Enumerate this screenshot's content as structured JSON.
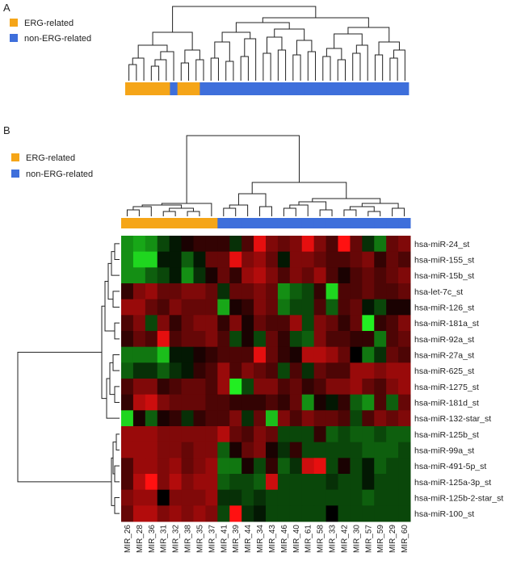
{
  "figure": {
    "panel_a_label": "A",
    "panel_b_label": "B"
  },
  "legend": {
    "erg_label": "ERG-related",
    "non_erg_label": "non-ERG-related"
  },
  "colors": {
    "erg": "#F5A518",
    "non_erg": "#3E6FDB",
    "dendrogram": "#222222",
    "heat_low": "#22EE22",
    "heat_mid": "#000000",
    "heat_high": "#FF1111"
  },
  "chart_data": [
    {
      "type": "dendrogram",
      "title": "A",
      "leaf_groups": [
        "ERG",
        "ERG",
        "ERG",
        "ERG",
        "ERG",
        "ERG",
        "non-ERG",
        "ERG",
        "ERG",
        "ERG",
        "non-ERG",
        "non-ERG",
        "non-ERG",
        "non-ERG",
        "non-ERG",
        "non-ERG",
        "non-ERG",
        "non-ERG",
        "non-ERG",
        "non-ERG",
        "non-ERG",
        "non-ERG",
        "non-ERG",
        "non-ERG",
        "non-ERG",
        "non-ERG",
        "non-ERG",
        "non-ERG",
        "non-ERG",
        "non-ERG",
        "non-ERG",
        "non-ERG",
        "non-ERG",
        "non-ERG",
        "non-ERG",
        "non-ERG",
        "non-ERG",
        "non-ERG"
      ],
      "legend": [
        "ERG-related",
        "non-ERG-related"
      ]
    },
    {
      "type": "heatmap",
      "title": "B",
      "columns": [
        "MIR_26",
        "MIR_28",
        "MIR_36",
        "MIR_31",
        "MIR_32",
        "MIR_38",
        "MIR_35",
        "MIR_37",
        "MIR_41",
        "MIR_39",
        "MIR_44",
        "MIR_34",
        "MIR_43",
        "MIR_46",
        "MIR_40",
        "MIR_61",
        "MIR_58",
        "MIR_33",
        "MIR_42",
        "MIR_30",
        "MIR_57",
        "MIR_59",
        "MIR_29",
        "MIR_60"
      ],
      "column_groups": [
        "ERG",
        "ERG",
        "ERG",
        "ERG",
        "ERG",
        "ERG",
        "ERG",
        "ERG",
        "non-ERG",
        "non-ERG",
        "non-ERG",
        "non-ERG",
        "non-ERG",
        "non-ERG",
        "non-ERG",
        "non-ERG",
        "non-ERG",
        "non-ERG",
        "non-ERG",
        "non-ERG",
        "non-ERG",
        "non-ERG",
        "non-ERG",
        "non-ERG"
      ],
      "rows": [
        "hsa-miR-24_st",
        "hsa-miR-155_st",
        "hsa-miR-15b_st",
        "hsa-let-7c_st",
        "hsa-miR-126_st",
        "hsa-miR-181a_st",
        "hsa-miR-92a_st",
        "hsa-miR-27a_st",
        "hsa-miR-625_st",
        "hsa-miR-1275_st",
        "hsa-miR-181d_st",
        "hsa-miR-132-star_st",
        "hsa-miR-125b_st",
        "hsa-miR-99a_st",
        "hsa-miR-491-5p_st",
        "hsa-miR-125a-3p_st",
        "hsa-miR-125b-2-star_st",
        "hsa-miR-100_st"
      ],
      "value_range": [
        -1,
        1
      ],
      "values": [
        [
          -0.6,
          -0.7,
          -0.6,
          -0.3,
          -0.1,
          0.1,
          0.2,
          0.2,
          0.2,
          -0.2,
          0.3,
          0.9,
          0.5,
          0.4,
          0.5,
          0.9,
          0.5,
          0.3,
          1.0,
          0.4,
          -0.2,
          -0.5,
          0.4,
          0.5
        ],
        [
          -0.6,
          -0.9,
          -0.9,
          -0.1,
          -0.1,
          -0.4,
          -0.1,
          0.4,
          0.4,
          0.9,
          0.5,
          0.6,
          0.4,
          -0.1,
          0.5,
          0.5,
          0.4,
          0.3,
          0.3,
          0.4,
          0.5,
          0.2,
          0.4,
          0.3
        ],
        [
          -0.6,
          -0.6,
          -0.4,
          -0.3,
          -0.1,
          -0.6,
          -0.2,
          0.1,
          0.4,
          0.2,
          0.6,
          0.7,
          0.5,
          0.3,
          0.5,
          0.4,
          0.6,
          0.3,
          0.1,
          0.3,
          0.4,
          0.3,
          0.4,
          0.5
        ],
        [
          0.2,
          0.5,
          0.6,
          0.4,
          0.4,
          0.5,
          0.5,
          0.4,
          -0.2,
          0.4,
          0.4,
          0.5,
          0.4,
          -0.6,
          -0.4,
          -0.3,
          0.2,
          -0.9,
          0.3,
          0.3,
          0.4,
          0.3,
          0.3,
          0.4
        ],
        [
          0.6,
          0.6,
          0.4,
          0.3,
          0.5,
          0.4,
          0.4,
          0.4,
          -0.7,
          0.1,
          0.2,
          0.5,
          0.4,
          -0.5,
          -0.3,
          -0.3,
          0.3,
          -0.4,
          0.3,
          0.4,
          -0.1,
          -0.3,
          0.1,
          0.1
        ],
        [
          0.3,
          0.5,
          -0.3,
          0.5,
          0.2,
          0.4,
          0.5,
          0.5,
          0.2,
          0.5,
          0.1,
          0.4,
          0.3,
          0.3,
          0.6,
          -0.3,
          0.5,
          0.4,
          0.2,
          0.4,
          -1.0,
          0.2,
          0.3,
          0.5
        ],
        [
          0.2,
          0.4,
          0.3,
          0.9,
          0.3,
          0.4,
          0.4,
          0.5,
          0.3,
          -0.3,
          0.1,
          -0.3,
          0.4,
          0.2,
          -0.3,
          -0.4,
          0.5,
          0.3,
          0.3,
          0.2,
          0.2,
          -0.5,
          0.3,
          0.4
        ],
        [
          -0.5,
          -0.5,
          -0.5,
          -0.8,
          -0.1,
          -0.1,
          0.1,
          0.2,
          0.3,
          0.3,
          0.3,
          0.9,
          0.4,
          0.2,
          0.1,
          0.7,
          0.7,
          0.6,
          0.4,
          0.0,
          -0.5,
          -0.2,
          0.4,
          0.3
        ],
        [
          -0.4,
          -0.2,
          -0.2,
          -0.4,
          -0.2,
          -0.1,
          0.2,
          0.3,
          0.6,
          0.3,
          0.5,
          0.4,
          0.3,
          -0.3,
          0.3,
          -0.2,
          0.4,
          0.3,
          0.3,
          0.6,
          0.6,
          0.5,
          0.6,
          0.6
        ],
        [
          0.3,
          0.5,
          0.5,
          0.2,
          0.3,
          0.4,
          0.4,
          0.3,
          0.6,
          -1.0,
          -0.3,
          0.5,
          0.5,
          0.3,
          0.4,
          0.2,
          0.3,
          0.5,
          0.5,
          0.6,
          0.4,
          0.3,
          0.5,
          0.6
        ],
        [
          0.2,
          0.7,
          0.8,
          0.5,
          0.4,
          0.4,
          0.4,
          0.3,
          0.3,
          0.2,
          0.2,
          0.2,
          0.3,
          0.2,
          0.4,
          -0.6,
          0.1,
          -0.1,
          0.2,
          -0.4,
          -0.6,
          0.3,
          -0.4,
          0.4
        ],
        [
          -0.9,
          0.1,
          -0.4,
          0.1,
          0.2,
          -0.2,
          0.2,
          0.3,
          0.3,
          0.5,
          -0.2,
          0.4,
          -0.8,
          0.5,
          0.3,
          0.5,
          0.4,
          0.4,
          0.3,
          -0.3,
          0.3,
          0.5,
          0.4,
          0.5
        ],
        [
          0.6,
          0.6,
          0.6,
          0.5,
          0.5,
          0.5,
          0.5,
          0.5,
          0.7,
          0.4,
          0.3,
          0.5,
          0.4,
          -0.3,
          -0.3,
          -0.3,
          0.2,
          -0.4,
          -0.3,
          -0.4,
          -0.4,
          -0.3,
          -0.4,
          -0.4
        ],
        [
          0.6,
          0.6,
          0.6,
          0.5,
          0.5,
          0.4,
          0.5,
          0.5,
          -0.4,
          0.1,
          0.4,
          0.5,
          0.1,
          -0.2,
          0.2,
          -0.3,
          -0.3,
          -0.3,
          -0.3,
          -0.3,
          -0.4,
          -0.4,
          -0.4,
          -0.3
        ],
        [
          0.3,
          0.6,
          0.6,
          0.5,
          0.6,
          0.4,
          0.5,
          0.6,
          -0.5,
          -0.5,
          0.1,
          -0.3,
          0.2,
          -0.4,
          -0.2,
          0.8,
          0.9,
          -0.3,
          0.1,
          -0.3,
          -0.1,
          -0.4,
          -0.3,
          -0.3
        ],
        [
          0.3,
          0.7,
          1.0,
          0.5,
          0.7,
          0.5,
          0.6,
          0.6,
          -0.4,
          -0.3,
          -0.3,
          -0.4,
          0.8,
          -0.3,
          -0.3,
          -0.3,
          -0.3,
          -0.2,
          -0.3,
          -0.3,
          -0.1,
          -0.3,
          -0.3,
          -0.3
        ],
        [
          0.5,
          0.6,
          0.6,
          0.0,
          0.5,
          0.5,
          0.5,
          0.6,
          -0.2,
          -0.2,
          -0.3,
          -0.2,
          -0.3,
          -0.3,
          -0.3,
          -0.3,
          -0.3,
          -0.3,
          -0.3,
          -0.3,
          -0.4,
          -0.3,
          -0.3,
          -0.3
        ],
        [
          0.4,
          0.7,
          0.7,
          0.5,
          0.6,
          0.5,
          0.6,
          0.5,
          -0.3,
          1.0,
          -0.2,
          -0.1,
          -0.3,
          -0.3,
          -0.3,
          -0.3,
          -0.3,
          0.0,
          -0.3,
          -0.3,
          -0.3,
          -0.3,
          -0.3,
          -0.3
        ]
      ],
      "legend": [
        "ERG-related",
        "non-ERG-related"
      ]
    }
  ]
}
